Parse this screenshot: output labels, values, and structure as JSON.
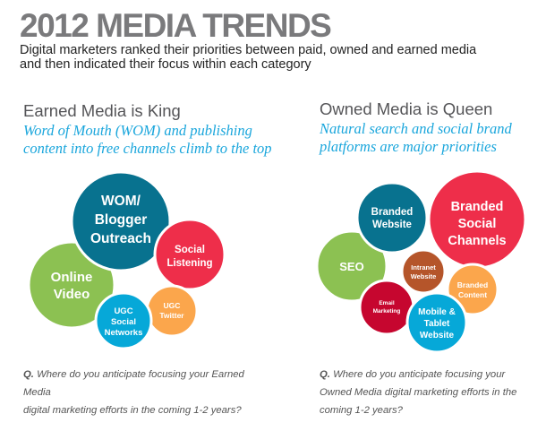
{
  "header": {
    "title": "2012 MEDIA TRENDS",
    "subtitle_line1": "Digital marketers ranked their priorities between paid, owned and earned media",
    "subtitle_line2": "and then indicated their focus within each category"
  },
  "earned": {
    "heading": "Earned Media is King",
    "tagline_line1": "Word of Mouth (WOM) and publishing",
    "tagline_line2": "content into free channels climb to the top",
    "bubbles": {
      "online_video": [
        "Online",
        "Video"
      ],
      "wom": [
        "WOM/",
        "Blogger",
        "Outreach"
      ],
      "social_listening": [
        "Social",
        "Listening"
      ],
      "ugc_twitter": [
        "UGC",
        "Twitter"
      ],
      "ugc_social": [
        "UGC",
        "Social",
        "Networks"
      ]
    },
    "question_prefix": "Q.",
    "question_line1": "Where do you anticipate focusing your Earned Media",
    "question_line2": "digital marketing efforts in the coming 1-2 years?"
  },
  "owned": {
    "heading": "Owned Media is Queen",
    "tagline_line1": "Natural search and social brand",
    "tagline_line2": "platforms are major priorities",
    "bubbles": {
      "seo": [
        "SEO"
      ],
      "branded_website": [
        "Branded",
        "Website"
      ],
      "branded_social": [
        "Branded",
        "Social",
        "Channels"
      ],
      "intranet": [
        "Intranet",
        "Website"
      ],
      "branded_content": [
        "Branded",
        "Content"
      ],
      "email": [
        "Email",
        "Marketing"
      ],
      "mobile": [
        "Mobile &",
        "Tablet",
        "Website"
      ]
    },
    "question_prefix": "Q.",
    "question_line1": "Where do you anticipate focusing your",
    "question_line2": "Owned Media digital marketing efforts in the",
    "question_line3": "coming 1-2 years?"
  },
  "colors": {
    "teal": "#08728f",
    "red": "#ee2e4a",
    "green": "#8cc152",
    "blue": "#06a8d8",
    "orange": "#fba64c",
    "brown": "#b5552a",
    "crimson": "#c6062f"
  }
}
